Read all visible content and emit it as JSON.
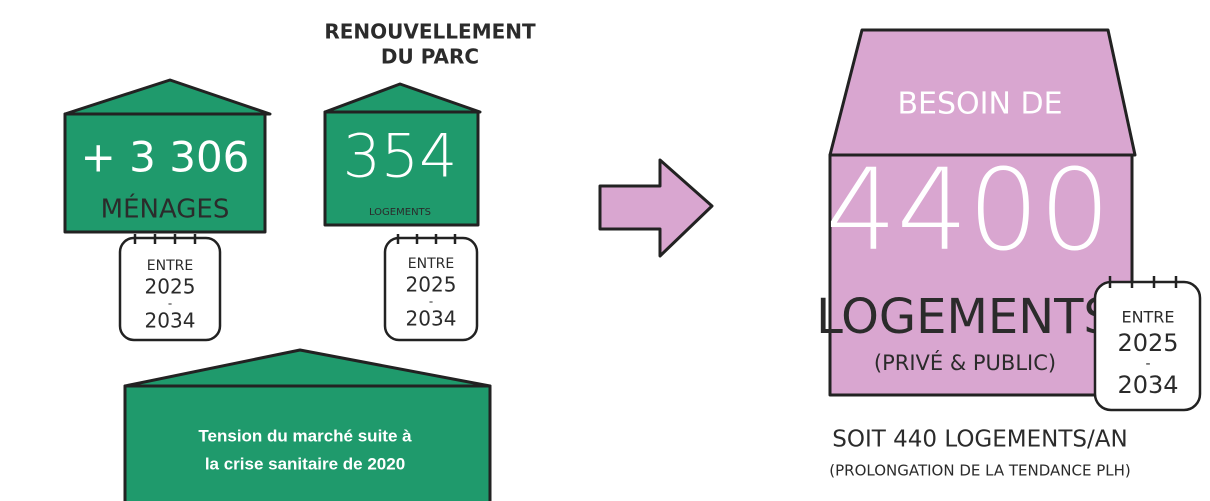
{
  "households": {
    "value": "+ 3 306",
    "label": "MÉNAGES",
    "calendar": {
      "prefix": "ENTRE",
      "start": "2025",
      "separator": "-",
      "end": "2034"
    }
  },
  "renewal": {
    "title": [
      "RENOUVELLEMENT",
      "DU PARC"
    ],
    "value": "354",
    "label": "LOGEMENTS",
    "calendar": {
      "prefix": "ENTRE",
      "start": "2025",
      "separator": "-",
      "end": "2034"
    }
  },
  "tension": {
    "lines": [
      "Tension du marché suite à",
      "la crise sanitaire de 2020"
    ]
  },
  "need": {
    "title": "BESOIN DE",
    "value": "4400",
    "label": "LOGEMENTS",
    "scope": "(PRIVÉ & PUBLIC)",
    "calendar": {
      "prefix": "ENTRE",
      "start": "2025",
      "separator": "-",
      "end": "2034"
    },
    "yearly": "SOIT 440 LOGEMENTS/AN",
    "note": "(PROLONGATION DE LA TENDANCE PLH)"
  }
}
